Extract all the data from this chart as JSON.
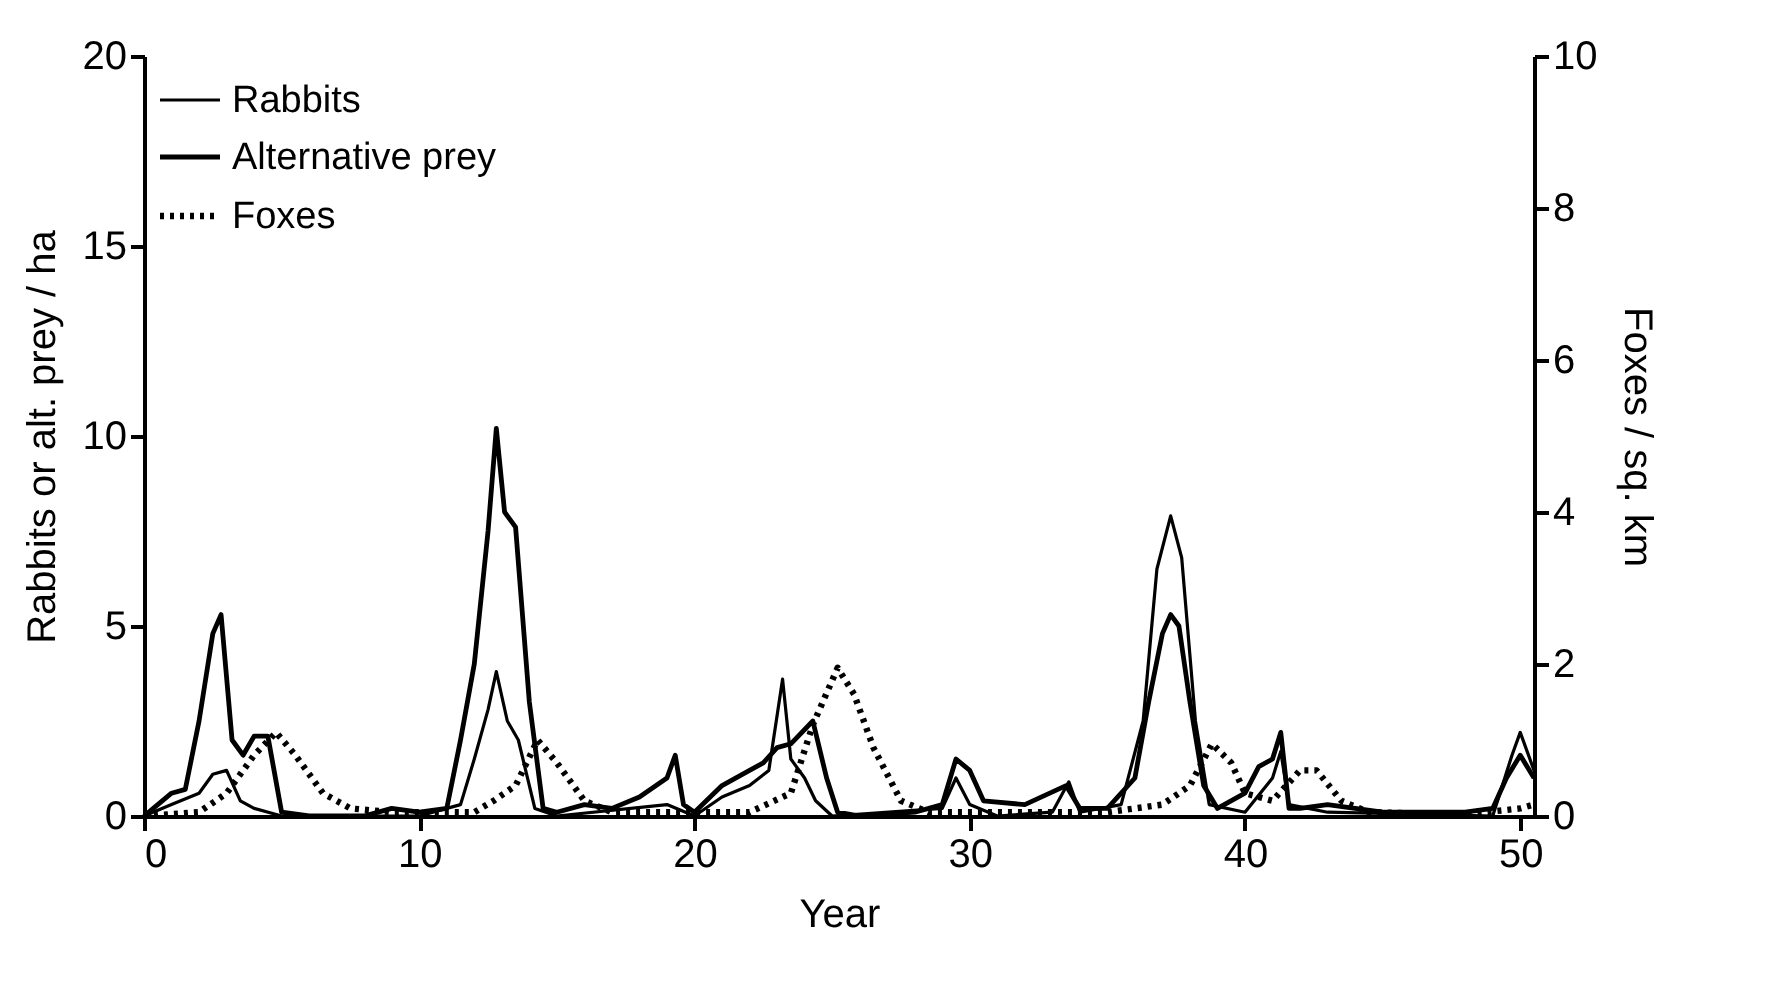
{
  "chart_data": {
    "type": "line",
    "xlabel": "Year",
    "ylabel": "Rabbits or alt. prey / ha",
    "y2label": "Foxes / sq. km",
    "xlim": [
      0,
      50.5
    ],
    "xticks": [
      0,
      10,
      20,
      30,
      40,
      50
    ],
    "ylim": [
      0,
      20
    ],
    "yticks": [
      0,
      5,
      10,
      15,
      20
    ],
    "y2lim": [
      0,
      10
    ],
    "y2ticks": [
      0,
      2,
      4,
      6,
      8,
      10
    ],
    "grid": false,
    "legend": "top left",
    "marker": "none",
    "series": [
      {
        "name": "Rabbits",
        "color": "#000000",
        "line_style": "solid",
        "x": [
          0,
          1,
          2,
          2.5,
          3,
          3.5,
          4,
          5,
          10,
          11.5,
          12,
          12.5,
          12.8,
          13.2,
          13.6,
          14.2,
          15,
          19,
          20,
          21,
          22,
          22.7,
          23.2,
          23.5,
          24,
          24.4,
          25,
          29,
          29.5,
          30,
          31,
          33,
          33.6,
          34,
          35.5,
          36.3,
          36.8,
          37.3,
          37.7,
          38.2,
          38.7,
          40,
          41,
          41.3,
          41.6,
          43,
          49,
          49.7,
          50,
          50.5
        ],
        "values": [
          0,
          0.3,
          0.6,
          1.1,
          1.2,
          0.4,
          0.2,
          0,
          0,
          0.3,
          1.5,
          2.8,
          3.8,
          2.5,
          2,
          0.2,
          0,
          0.3,
          0,
          0.5,
          0.8,
          1.2,
          3.6,
          1.5,
          1,
          0.4,
          0,
          0.2,
          1,
          0.3,
          0,
          0.1,
          0.9,
          0.1,
          0.3,
          2.5,
          6.5,
          7.9,
          6.8,
          2.5,
          0.3,
          0.1,
          1,
          1.7,
          0.3,
          0.1,
          0,
          1.6,
          2.2,
          1.2
        ]
      },
      {
        "name": "Alternative prey",
        "color": "#000000",
        "line_style": "solid",
        "x": [
          0,
          0.5,
          1,
          1.5,
          2,
          2.5,
          2.8,
          3.2,
          3.6,
          4,
          4.5,
          5,
          6,
          8,
          9,
          10,
          11,
          11.5,
          12,
          12.5,
          12.8,
          13.1,
          13.5,
          14,
          14.5,
          15,
          16,
          17,
          18,
          19,
          19.3,
          19.6,
          20,
          21,
          22,
          22.5,
          23,
          23.5,
          24.3,
          24.8,
          25.2,
          26,
          28,
          29,
          29.5,
          30,
          30.5,
          32,
          33.5,
          34,
          35,
          36,
          36.5,
          37,
          37.3,
          37.6,
          38,
          38.5,
          39,
          40,
          40.5,
          41,
          41.3,
          41.6,
          42,
          43,
          44,
          45,
          48,
          49,
          49.5,
          50,
          50.5
        ],
        "values": [
          0,
          0.3,
          0.6,
          0.7,
          2.5,
          4.8,
          5.3,
          2,
          1.6,
          2.1,
          2.1,
          0.1,
          0,
          0,
          0.2,
          0.1,
          0.2,
          2,
          4,
          7.5,
          10.2,
          8,
          7.6,
          3,
          0.2,
          0.1,
          0.3,
          0.2,
          0.5,
          1,
          1.6,
          0.3,
          0.1,
          0.8,
          1.2,
          1.4,
          1.8,
          1.9,
          2.5,
          1,
          0.1,
          0,
          0.1,
          0.3,
          1.5,
          1.2,
          0.4,
          0.3,
          0.8,
          0.2,
          0.2,
          1,
          3,
          4.8,
          5.3,
          5,
          3,
          0.8,
          0.2,
          0.6,
          1.3,
          1.5,
          2.2,
          0.2,
          0.2,
          0.3,
          0.2,
          0.1,
          0.1,
          0.2,
          1,
          1.6,
          1
        ]
      },
      {
        "name": "Foxes",
        "color": "#000000",
        "line_style": "dotted",
        "axis": "y2",
        "x": [
          0,
          2,
          3,
          4,
          4.8,
          5.5,
          6.5,
          7.5,
          9,
          12,
          12.7,
          13.5,
          14.3,
          15,
          16,
          17,
          22,
          23.5,
          24.3,
          25.2,
          25.8,
          26.5,
          27.5,
          28.5,
          35,
          36,
          37,
          38,
          38.8,
          39.5,
          40,
          41,
          42,
          42.6,
          43.5,
          44.5,
          48,
          50,
          50.5
        ],
        "values": [
          0,
          0.05,
          0.3,
          0.8,
          1.1,
          0.8,
          0.3,
          0.1,
          0.05,
          0.05,
          0.2,
          0.4,
          1,
          0.7,
          0.2,
          0.05,
          0.05,
          0.3,
          1.2,
          1.95,
          1.6,
          0.9,
          0.2,
          0.05,
          0.05,
          0.1,
          0.15,
          0.4,
          0.95,
          0.7,
          0.3,
          0.2,
          0.6,
          0.6,
          0.2,
          0.05,
          0.02,
          0.1,
          0.15
        ]
      }
    ]
  }
}
